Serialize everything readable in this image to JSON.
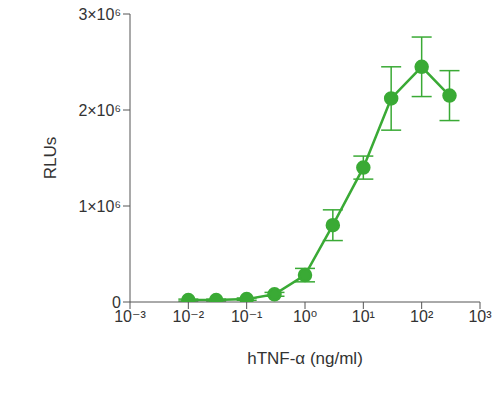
{
  "chart_data": {
    "type": "line",
    "x_label": "hTNF-α (ng/ml)",
    "y_label": "RLUs",
    "log": "x",
    "grid": false,
    "color": "#3aaa35",
    "marker": "circle",
    "line_style": "solid",
    "x": [
      0.01,
      0.03,
      0.1,
      0.3,
      1,
      3,
      10,
      30,
      100,
      300
    ],
    "values": [
      20000,
      20000,
      30000,
      80000,
      280000,
      800000,
      1400000,
      2120000,
      2450000,
      2150000
    ],
    "errors": [
      10000,
      10000,
      12000,
      20000,
      70000,
      160000,
      120000,
      330000,
      310000,
      260000
    ],
    "xlim": [
      0.001,
      1000
    ],
    "xticks": [
      {
        "value": 0.001,
        "label": "10⁻³"
      },
      {
        "value": 0.01,
        "label": "10⁻²"
      },
      {
        "value": 0.1,
        "label": "10⁻¹"
      },
      {
        "value": 1,
        "label": "10⁰"
      },
      {
        "value": 10,
        "label": "10¹"
      },
      {
        "value": 100,
        "label": "10²"
      },
      {
        "value": 1000,
        "label": "10³"
      }
    ],
    "ylim": [
      0,
      3000000
    ],
    "yticks": [
      0,
      {
        "value": 1000000,
        "label": "1×10⁶"
      },
      {
        "value": 2000000,
        "label": "2×10⁶"
      },
      {
        "value": 3000000,
        "label": "3×10⁶"
      }
    ]
  }
}
